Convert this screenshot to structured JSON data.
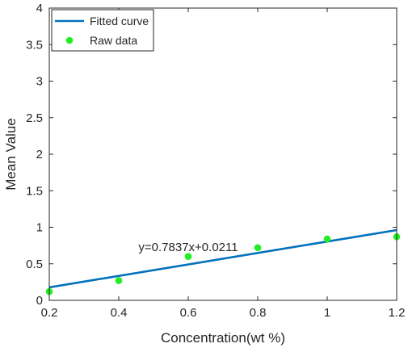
{
  "chart_data": {
    "type": "scatter",
    "title": "",
    "xlabel": "Concentration(wt %)",
    "ylabel": "Mean Value",
    "xlim": [
      0.2,
      1.2
    ],
    "ylim": [
      0,
      4
    ],
    "xticks": [
      0.2,
      0.4,
      0.6,
      0.8,
      1.0,
      1.2
    ],
    "xtick_labels": [
      "0.2",
      "0.4",
      "0.6",
      "0.8",
      "1",
      "1.2"
    ],
    "yticks": [
      0,
      0.5,
      1,
      1.5,
      2,
      2.5,
      3,
      3.5,
      4
    ],
    "ytick_labels": [
      "0",
      "0.5",
      "1",
      "1.5",
      "2",
      "2.5",
      "3",
      "3.5",
      "4"
    ],
    "grid": false,
    "legend_position": "top-left",
    "series": [
      {
        "name": "Fitted curve",
        "kind": "line",
        "color": "#0072bd",
        "x": [
          0.2,
          1.2
        ],
        "y": [
          0.1778,
          0.9615
        ]
      },
      {
        "name": "Raw data",
        "kind": "scatter",
        "color": "#22ee22",
        "x": [
          0.2,
          0.4,
          0.6,
          0.8,
          1.0,
          1.2
        ],
        "y": [
          0.12,
          0.27,
          0.6,
          0.72,
          0.84,
          0.87
        ]
      }
    ],
    "annotations": [
      {
        "text": "y=0.7837x+0.0211",
        "x": 0.6,
        "y": 0.73
      }
    ]
  }
}
